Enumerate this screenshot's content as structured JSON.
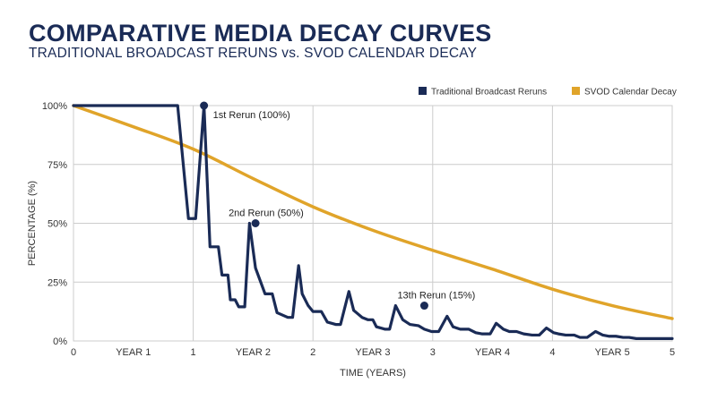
{
  "chart_data": {
    "type": "line",
    "title": "COMPARATIVE MEDIA DECAY CURVES",
    "subtitle": "TRADITIONAL BROADCAST RERUNS vs. SVOD CALENDAR DECAY",
    "xlabel": "TIME (YEARS)",
    "ylabel": "PERCENTAGE (%)",
    "xlim": [
      0,
      5
    ],
    "ylim": [
      0,
      100
    ],
    "x_ticks": [
      {
        "value": 0,
        "label": "0"
      },
      {
        "value": 0.5,
        "label": "YEAR 1"
      },
      {
        "value": 1,
        "label": "1"
      },
      {
        "value": 1.5,
        "label": "YEAR 2"
      },
      {
        "value": 2,
        "label": "2"
      },
      {
        "value": 2.5,
        "label": "YEAR 3"
      },
      {
        "value": 3,
        "label": "3"
      },
      {
        "value": 3.5,
        "label": "YEAR 4"
      },
      {
        "value": 4,
        "label": "4"
      },
      {
        "value": 4.5,
        "label": "YEAR 5"
      },
      {
        "value": 5,
        "label": "5"
      }
    ],
    "y_ticks": [
      {
        "value": 0,
        "label": "0%"
      },
      {
        "value": 25,
        "label": "25%"
      },
      {
        "value": 50,
        "label": "50%"
      },
      {
        "value": 75,
        "label": "75%"
      },
      {
        "value": 100,
        "label": "100%"
      }
    ],
    "grid": true,
    "legend_position": "top-right",
    "series": [
      {
        "name": "Traditional Broadcast Reruns",
        "color": "#1a2b56",
        "x": [
          0,
          0.87,
          0.96,
          1.02,
          1.09,
          1.14,
          1.21,
          1.24,
          1.29,
          1.31,
          1.35,
          1.38,
          1.43,
          1.47,
          1.52,
          1.6,
          1.66,
          1.7,
          1.79,
          1.83,
          1.88,
          1.91,
          1.96,
          2.0,
          2.07,
          2.12,
          2.19,
          2.23,
          2.3,
          2.34,
          2.41,
          2.46,
          2.5,
          2.53,
          2.6,
          2.64,
          2.69,
          2.75,
          2.81,
          2.88,
          2.93,
          2.99,
          3.05,
          3.12,
          3.17,
          3.23,
          3.3,
          3.36,
          3.41,
          3.48,
          3.53,
          3.59,
          3.64,
          3.7,
          3.76,
          3.83,
          3.89,
          3.95,
          4.01,
          4.05,
          4.11,
          4.18,
          4.23,
          4.29,
          4.36,
          4.42,
          4.47,
          4.53,
          4.59,
          4.64,
          4.7,
          4.76,
          4.82,
          4.88,
          4.93,
          5.0
        ],
        "y": [
          100,
          100,
          52,
          52,
          100,
          40,
          40,
          28,
          28,
          17.5,
          17.5,
          14.5,
          14.5,
          50,
          31,
          20,
          20,
          12,
          10,
          10,
          32,
          20,
          15,
          12.5,
          12.5,
          8,
          7,
          7,
          21,
          13,
          10,
          9,
          9,
          6,
          5,
          5,
          15,
          9,
          7,
          6.5,
          5,
          4,
          4,
          10.5,
          6,
          5,
          5,
          3.5,
          3,
          3,
          7.5,
          5,
          4,
          4,
          3,
          2.5,
          2.5,
          5.5,
          3.5,
          3,
          2.5,
          2.5,
          1.5,
          1.5,
          4,
          2.5,
          2,
          2,
          1.5,
          1.5,
          1,
          1,
          1,
          1,
          1,
          1
        ]
      },
      {
        "name": "SVOD Calendar Decay",
        "color": "#e0a42a",
        "x": [
          0,
          0.5,
          1,
          1.5,
          2,
          2.5,
          3,
          3.5,
          4,
          4.5,
          5
        ],
        "y": [
          100,
          91,
          81.5,
          69,
          57,
          47,
          38.5,
          30.5,
          22,
          15,
          9.5
        ]
      }
    ],
    "annotations": [
      {
        "x": 1.09,
        "y": 100,
        "label": "1st Rerun (100%)"
      },
      {
        "x": 1.52,
        "y": 50,
        "label": "2nd Rerun (50%)"
      },
      {
        "x": 2.93,
        "y": 15,
        "label": "13th Rerun (15%)"
      }
    ]
  }
}
